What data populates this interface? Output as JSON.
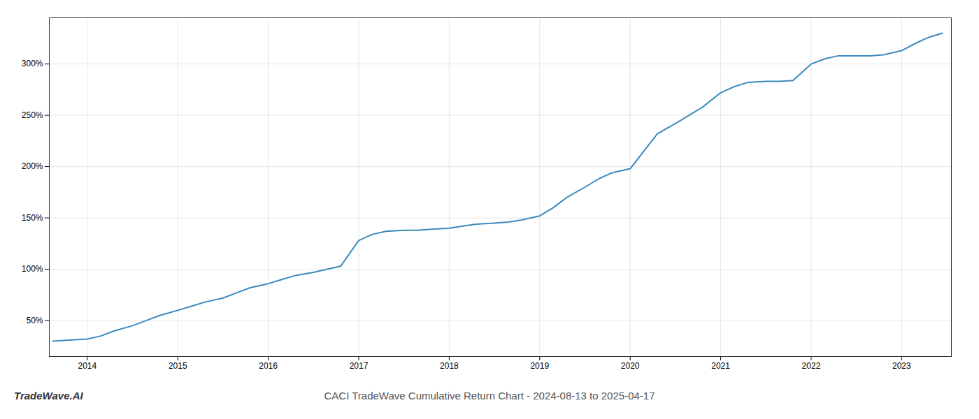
{
  "chart_data": {
    "type": "line",
    "title": "CACI TradeWave Cumulative Return Chart - 2024-08-13 to 2025-04-17",
    "annotations": [
      "TradeWave.AI"
    ],
    "color": "#3a8abf",
    "grid": true,
    "x": [
      2013.62,
      2013.8,
      2014.0,
      2014.15,
      2014.3,
      2014.5,
      2014.65,
      2014.8,
      2015.0,
      2015.15,
      2015.3,
      2015.5,
      2015.65,
      2015.8,
      2016.0,
      2016.15,
      2016.3,
      2016.5,
      2016.65,
      2016.8,
      2017.0,
      2017.15,
      2017.3,
      2017.5,
      2017.65,
      2017.8,
      2018.0,
      2018.15,
      2018.3,
      2018.5,
      2018.65,
      2018.8,
      2019.0,
      2019.15,
      2019.3,
      2019.5,
      2019.65,
      2019.8,
      2020.0,
      2020.15,
      2020.3,
      2020.5,
      2020.65,
      2020.8,
      2021.0,
      2021.15,
      2021.3,
      2021.5,
      2021.65,
      2021.8,
      2022.0,
      2022.15,
      2022.3,
      2022.5,
      2022.65,
      2022.8,
      2023.0,
      2023.15,
      2023.3,
      2023.45
    ],
    "values": [
      30,
      31,
      32,
      35,
      40,
      45,
      50,
      55,
      60,
      64,
      68,
      72,
      77,
      82,
      86,
      90,
      94,
      97,
      100,
      103,
      128,
      134,
      137,
      138,
      138,
      139,
      140,
      142,
      144,
      145,
      146,
      148,
      152,
      160,
      170,
      180,
      188,
      194,
      198,
      215,
      232,
      242,
      250,
      258,
      272,
      278,
      282,
      283,
      283,
      284,
      300,
      305,
      308,
      308,
      308,
      309,
      313,
      320,
      326,
      330
    ],
    "xlim": [
      2013.58,
      2023.55
    ],
    "ylim": [
      15,
      345
    ],
    "xticks": [
      2014,
      2015,
      2016,
      2017,
      2018,
      2019,
      2020,
      2021,
      2022,
      2023
    ],
    "yticks": [
      {
        "value": 50,
        "label": "50%"
      },
      {
        "value": 100,
        "label": "100%"
      },
      {
        "value": 150,
        "label": "150%"
      },
      {
        "value": 200,
        "label": "200%"
      },
      {
        "value": 250,
        "label": "250%"
      },
      {
        "value": 300,
        "label": "300%"
      }
    ]
  }
}
